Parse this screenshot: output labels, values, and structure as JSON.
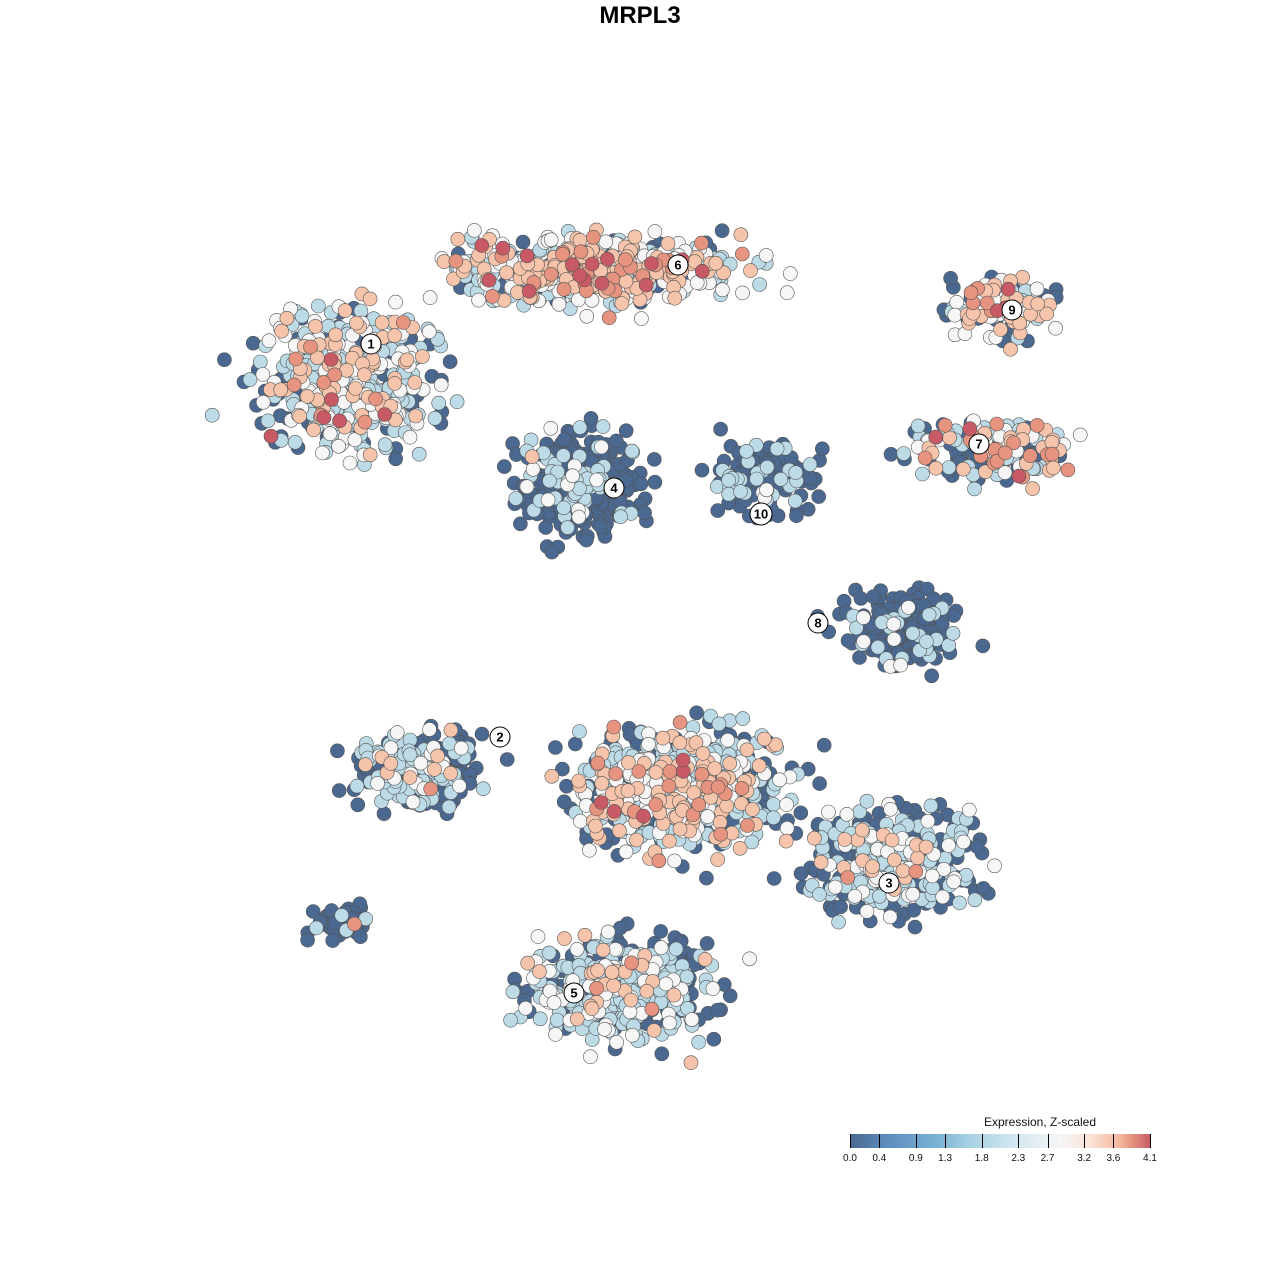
{
  "title": "MRPL3",
  "chart_data": {
    "type": "scatter",
    "title": "MRPL3",
    "xlabel": "",
    "ylabel": "",
    "color_scale": {
      "title": "Expression, Z-scaled",
      "ticks": [
        "0.0",
        "0.4",
        "0.9",
        "1.3",
        "1.8",
        "2.3",
        "2.7",
        "3.2",
        "3.6",
        "4.1"
      ],
      "range": [
        0.0,
        4.1
      ],
      "colors": [
        "#4a6890",
        "#79b2d3",
        "#f5f6f7",
        "#f4b79d",
        "#c75a66"
      ]
    },
    "cluster_labels": [
      "1",
      "2",
      "3",
      "4",
      "5",
      "6",
      "7",
      "8",
      "9",
      "10"
    ],
    "grid": false
  }
}
